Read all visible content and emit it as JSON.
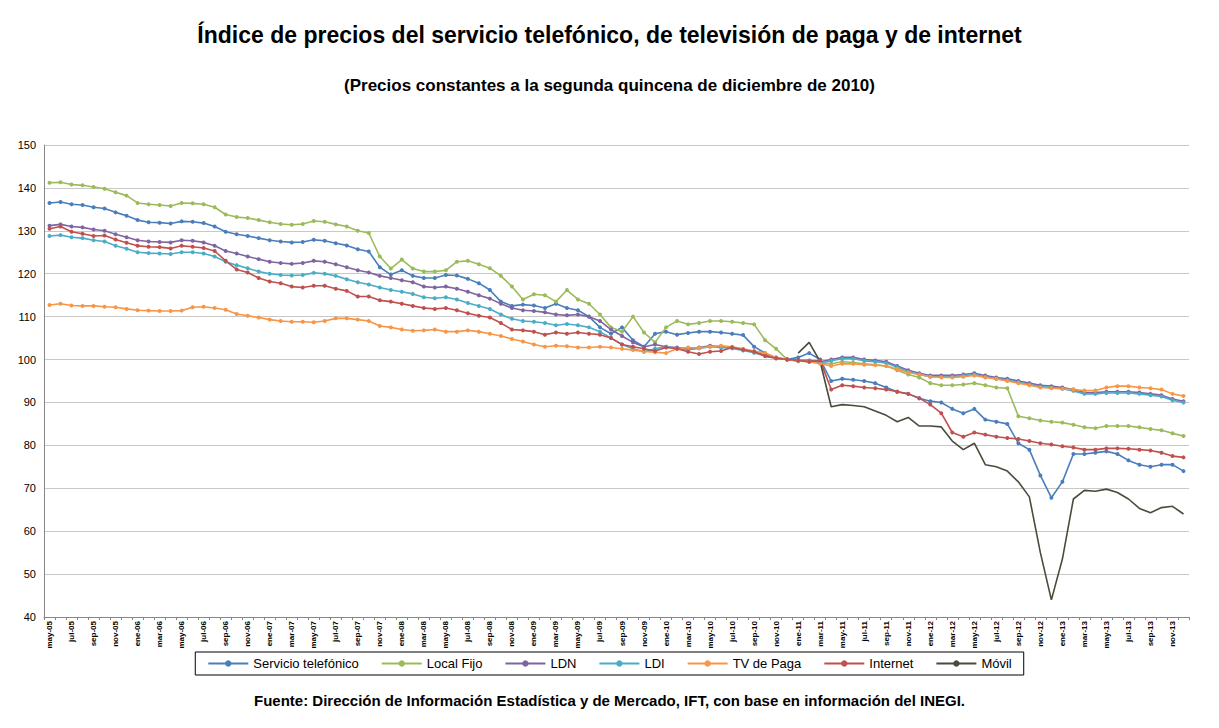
{
  "chart_data": {
    "type": "line",
    "title": "Índice de precios del servicio telefónico, de televisión de paga y de internet",
    "subtitle": "(Precios constantes a la segunda quincena de diciembre de 2010)",
    "source": "Fuente: Dirección de Información Estadística y de Mercado, IFT, con base en información del INEGI.",
    "categories": [
      "may-05",
      null,
      "jul-05",
      null,
      "sep-05",
      null,
      "nov-05",
      null,
      "ene-06",
      null,
      "mar-06",
      null,
      "may-06",
      null,
      "jul-06",
      null,
      "sep-06",
      null,
      "nov-06",
      null,
      "ene-07",
      null,
      "mar-07",
      null,
      "may-07",
      null,
      "jul-07",
      null,
      "sep-07",
      null,
      "nov-07",
      null,
      "ene-08",
      null,
      "mar-08",
      null,
      "may-08",
      null,
      "jul-08",
      null,
      "sep-08",
      null,
      "nov-08",
      null,
      "ene-09",
      null,
      "mar-09",
      null,
      "may-09",
      null,
      "jul-09",
      null,
      "sep-09",
      null,
      "nov-09",
      null,
      "ene-10",
      null,
      "mar-10",
      null,
      "may-10",
      null,
      "jul-10",
      null,
      "sep-10",
      null,
      "nov-10",
      null,
      "ene-11",
      null,
      "mar-11",
      null,
      "may-11",
      null,
      "jul-11",
      null,
      "sep-11",
      null,
      "nov-11",
      null,
      "ene-12",
      null,
      "mar-12",
      null,
      "may-12",
      null,
      "jul-12",
      null,
      "sep-12",
      null,
      "nov-12",
      null,
      "ene-13",
      null,
      "mar-13",
      null,
      "may-13",
      null,
      "jul-13",
      null,
      "sep-13",
      null,
      "nov-13",
      null
    ],
    "series": [
      {
        "name": "Servicio telefónico",
        "color": "#4A7EBB",
        "marker": "circle",
        "values": [
          136.5,
          136.7,
          136.2,
          136.0,
          135.5,
          135.2,
          134.3,
          133.5,
          132.5,
          132.0,
          131.9,
          131.7,
          132.2,
          132.1,
          131.8,
          131.0,
          129.8,
          129.2,
          128.8,
          128.3,
          127.8,
          127.5,
          127.3,
          127.4,
          127.9,
          127.7,
          127.1,
          126.6,
          125.7,
          125.2,
          121.5,
          119.8,
          120.8,
          119.5,
          119.0,
          119.0,
          119.7,
          119.6,
          118.8,
          117.8,
          116.2,
          113.5,
          112.5,
          112.8,
          112.6,
          112.0,
          113.0,
          112.0,
          111.5,
          110.0,
          107.5,
          106.0,
          107.5,
          104.5,
          103.0,
          106.0,
          106.5,
          105.8,
          106.2,
          106.5,
          106.5,
          106.3,
          106.0,
          105.7,
          103.0,
          101.5,
          100.3,
          100.0,
          100.5,
          101.5,
          100.0,
          95.0,
          95.5,
          95.3,
          95.0,
          94.5,
          93.5,
          92.5,
          92.0,
          91.0,
          90.3,
          90.0,
          88.5,
          87.5,
          88.5,
          86.0,
          85.5,
          85.0,
          80.5,
          79.0,
          73.0,
          67.8,
          71.5,
          78.0,
          78.0,
          78.3,
          78.6,
          78.0,
          76.5,
          75.5,
          75.0,
          75.5,
          75.5,
          74.0
        ]
      },
      {
        "name": "Local Fijo",
        "color": "#9BBB59",
        "marker": "circle",
        "values": [
          141.2,
          141.3,
          140.8,
          140.6,
          140.2,
          139.8,
          139.0,
          138.2,
          136.5,
          136.2,
          136.0,
          135.8,
          136.5,
          136.4,
          136.2,
          135.5,
          133.8,
          133.2,
          133.0,
          132.5,
          132.0,
          131.6,
          131.4,
          131.6,
          132.3,
          132.1,
          131.5,
          131.0,
          130.0,
          129.5,
          124.0,
          121.2,
          123.3,
          121.2,
          120.5,
          120.5,
          120.8,
          122.8,
          123.0,
          122.2,
          121.3,
          119.5,
          117.0,
          114.0,
          115.2,
          115.0,
          113.5,
          116.2,
          114.0,
          113.0,
          110.5,
          107.5,
          106.5,
          110.0,
          106.3,
          104.0,
          107.5,
          109.0,
          108.2,
          108.5,
          109.0,
          109.0,
          108.8,
          108.5,
          108.2,
          104.5,
          102.5,
          100.0,
          99.7,
          99.5,
          99.3,
          99.0,
          99.5,
          99.3,
          99.0,
          98.8,
          98.5,
          97.5,
          96.5,
          95.8,
          94.5,
          94.0,
          94.0,
          94.2,
          94.5,
          94.0,
          93.5,
          93.3,
          86.8,
          86.3,
          85.8,
          85.5,
          85.3,
          84.8,
          84.2,
          84.0,
          84.5,
          84.5,
          84.5,
          84.2,
          83.8,
          83.5,
          82.8,
          82.2
        ]
      },
      {
        "name": "LDN",
        "color": "#8064A2",
        "marker": "circle",
        "values": [
          131.2,
          131.5,
          131.0,
          130.8,
          130.3,
          130.0,
          129.2,
          128.5,
          127.8,
          127.5,
          127.4,
          127.3,
          127.8,
          127.7,
          127.3,
          126.5,
          125.3,
          124.7,
          124.0,
          123.4,
          122.8,
          122.5,
          122.3,
          122.5,
          123.0,
          122.8,
          122.2,
          121.5,
          120.8,
          120.3,
          119.5,
          119.0,
          118.5,
          118.0,
          117.0,
          116.8,
          117.0,
          116.5,
          115.8,
          115.0,
          114.2,
          113.0,
          112.0,
          111.5,
          111.3,
          111.0,
          110.5,
          110.3,
          110.5,
          110.0,
          109.0,
          107.0,
          105.5,
          104.0,
          103.0,
          103.5,
          103.0,
          102.8,
          102.5,
          102.8,
          103.2,
          103.0,
          102.8,
          102.3,
          101.8,
          101.0,
          100.5,
          100.0,
          99.8,
          99.8,
          99.5,
          100.0,
          100.5,
          100.5,
          100.0,
          99.8,
          99.5,
          98.5,
          97.5,
          96.8,
          96.3,
          96.3,
          96.3,
          96.5,
          96.8,
          96.3,
          95.8,
          95.5,
          95.0,
          94.5,
          94.0,
          93.8,
          93.5,
          93.0,
          92.3,
          92.3,
          92.5,
          92.5,
          92.5,
          92.3,
          92.0,
          91.7,
          90.8,
          90.3
        ]
      },
      {
        "name": "LDI",
        "color": "#4BACC6",
        "marker": "circle",
        "values": [
          128.8,
          129.0,
          128.5,
          128.3,
          127.8,
          127.5,
          126.5,
          125.8,
          125.0,
          124.8,
          124.7,
          124.6,
          125.0,
          125.0,
          124.7,
          124.0,
          122.8,
          122.0,
          121.3,
          120.5,
          120.0,
          119.7,
          119.6,
          119.7,
          120.2,
          120.0,
          119.5,
          118.7,
          118.0,
          117.5,
          116.8,
          116.2,
          115.8,
          115.3,
          114.5,
          114.3,
          114.5,
          114.0,
          113.2,
          112.5,
          111.8,
          110.5,
          109.5,
          109.0,
          108.8,
          108.5,
          108.0,
          108.3,
          108.0,
          107.5,
          106.5,
          105.0,
          103.5,
          102.5,
          101.8,
          102.5,
          103.0,
          102.6,
          102.3,
          102.6,
          103.0,
          102.8,
          102.6,
          102.1,
          101.6,
          100.8,
          100.3,
          100.0,
          99.6,
          99.6,
          99.2,
          99.7,
          100.2,
          100.2,
          99.7,
          99.5,
          99.2,
          98.2,
          97.2,
          96.5,
          96.0,
          96.0,
          96.0,
          96.2,
          96.5,
          96.0,
          95.5,
          95.2,
          94.7,
          94.2,
          93.7,
          93.5,
          93.2,
          92.7,
          92.0,
          92.0,
          92.2,
          92.2,
          92.2,
          92.0,
          91.7,
          91.4,
          90.5,
          90.0
        ]
      },
      {
        "name": "TV de Paga",
        "color": "#F79646",
        "marker": "circle",
        "values": [
          112.7,
          113.0,
          112.6,
          112.5,
          112.5,
          112.3,
          112.2,
          111.8,
          111.5,
          111.4,
          111.3,
          111.3,
          111.4,
          112.2,
          112.3,
          112.0,
          111.6,
          110.6,
          110.2,
          109.8,
          109.3,
          109.0,
          108.8,
          108.8,
          108.7,
          109.0,
          109.6,
          109.6,
          109.3,
          109.0,
          107.8,
          107.5,
          107.0,
          106.7,
          106.8,
          107.0,
          106.5,
          106.5,
          106.8,
          106.5,
          106.0,
          105.5,
          104.8,
          104.2,
          103.5,
          103.0,
          103.2,
          103.1,
          102.8,
          102.8,
          103.0,
          102.8,
          102.5,
          102.2,
          101.9,
          101.7,
          101.5,
          102.5,
          102.8,
          102.7,
          103.0,
          103.2,
          103.0,
          102.5,
          102.0,
          101.5,
          100.5,
          100.0,
          99.7,
          99.5,
          99.0,
          98.5,
          99.0,
          99.0,
          98.8,
          98.7,
          98.5,
          97.8,
          97.0,
          96.5,
          96.0,
          95.8,
          95.8,
          96.0,
          96.3,
          95.8,
          95.5,
          95.0,
          94.5,
          94.0,
          93.5,
          93.3,
          93.2,
          93.0,
          92.8,
          92.8,
          93.5,
          93.8,
          93.8,
          93.5,
          93.3,
          93.0,
          92.0,
          91.5
        ]
      },
      {
        "name": "Internet",
        "color": "#C0504D",
        "marker": "circle",
        "values": [
          130.5,
          131.0,
          129.8,
          129.3,
          128.8,
          128.9,
          128.0,
          127.2,
          126.5,
          126.3,
          126.2,
          125.9,
          126.5,
          126.3,
          126.0,
          125.3,
          123.0,
          121.0,
          120.3,
          119.0,
          118.2,
          117.8,
          117.0,
          116.8,
          117.2,
          117.2,
          116.5,
          116.0,
          114.7,
          114.7,
          113.8,
          113.5,
          113.0,
          112.5,
          112.0,
          111.8,
          112.0,
          111.5,
          110.8,
          110.2,
          109.8,
          108.5,
          107.0,
          106.8,
          106.5,
          105.8,
          106.3,
          106.0,
          106.3,
          106.0,
          105.8,
          105.0,
          103.5,
          103.0,
          102.5,
          102.0,
          102.8,
          102.5,
          101.8,
          101.3,
          101.8,
          102.0,
          102.8,
          102.3,
          101.8,
          100.8,
          100.3,
          100.0,
          99.8,
          99.5,
          99.8,
          93.0,
          94.0,
          93.8,
          93.5,
          93.3,
          93.0,
          92.5,
          92.0,
          91.0,
          89.5,
          87.5,
          83.0,
          82.0,
          83.0,
          82.5,
          82.0,
          81.7,
          81.5,
          81.0,
          80.5,
          80.2,
          79.8,
          79.5,
          79.0,
          79.0,
          79.3,
          79.3,
          79.2,
          79.0,
          78.8,
          78.3,
          77.5,
          77.2
        ]
      },
      {
        "name": "Móvil",
        "color": "#4B4B3B",
        "marker": "none",
        "values": [
          null,
          null,
          null,
          null,
          null,
          null,
          null,
          null,
          null,
          null,
          null,
          null,
          null,
          null,
          null,
          null,
          null,
          null,
          null,
          null,
          null,
          null,
          null,
          null,
          null,
          null,
          null,
          null,
          null,
          null,
          null,
          null,
          null,
          null,
          null,
          null,
          null,
          null,
          null,
          null,
          null,
          null,
          null,
          null,
          null,
          null,
          null,
          null,
          null,
          null,
          null,
          null,
          null,
          null,
          null,
          null,
          null,
          null,
          null,
          null,
          null,
          null,
          null,
          null,
          null,
          null,
          null,
          null,
          101.5,
          104.0,
          99.5,
          89.0,
          89.5,
          89.3,
          89.0,
          88.0,
          87.0,
          85.5,
          86.5,
          84.5,
          84.5,
          84.3,
          81.0,
          79.0,
          80.5,
          75.5,
          75.0,
          74.0,
          71.5,
          68.0,
          55.0,
          44.0,
          53.5,
          67.5,
          69.5,
          69.3,
          69.8,
          69.0,
          67.5,
          65.3,
          64.3,
          65.5,
          65.8,
          64.0
        ]
      }
    ],
    "ylim": [
      40,
      150
    ],
    "yticks": [
      40,
      50,
      60,
      70,
      80,
      90,
      100,
      110,
      120,
      130,
      140,
      150
    ],
    "grid": true,
    "legend": "bottom"
  }
}
